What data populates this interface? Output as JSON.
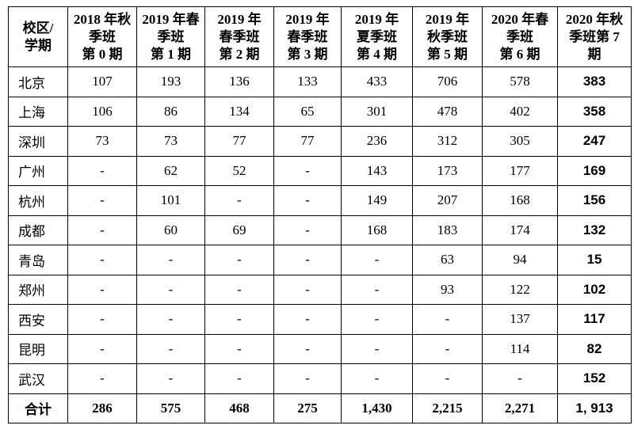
{
  "table": {
    "header": [
      [
        "校区/",
        "学期"
      ],
      [
        "2018 年秋",
        "季班",
        "第 0 期"
      ],
      [
        "2019 年春",
        "季班",
        "第 1 期"
      ],
      [
        "2019 年",
        "春季班",
        "第 2 期"
      ],
      [
        "2019 年",
        "春季班",
        "第 3 期"
      ],
      [
        "2019 年",
        "夏季班",
        "第 4 期"
      ],
      [
        "2019 年",
        "秋季班",
        "第 5 期"
      ],
      [
        "2020 年春",
        "季班",
        "第 6 期"
      ],
      [
        "2020 年秋",
        "季班第 7",
        "期"
      ]
    ],
    "rows": [
      [
        "北京",
        "107",
        "193",
        "136",
        "133",
        "433",
        "706",
        "578",
        "383"
      ],
      [
        "上海",
        "106",
        "86",
        "134",
        "65",
        "301",
        "478",
        "402",
        "358"
      ],
      [
        "深圳",
        "73",
        "73",
        "77",
        "77",
        "236",
        "312",
        "305",
        "247"
      ],
      [
        "广州",
        "-",
        "62",
        "52",
        "-",
        "143",
        "173",
        "177",
        "169"
      ],
      [
        "杭州",
        "-",
        "101",
        "-",
        "-",
        "149",
        "207",
        "168",
        "156"
      ],
      [
        "成都",
        "-",
        "60",
        "69",
        "-",
        "168",
        "183",
        "174",
        "132"
      ],
      [
        "青岛",
        "-",
        "-",
        "-",
        "-",
        "-",
        "63",
        "94",
        "15"
      ],
      [
        "郑州",
        "-",
        "-",
        "-",
        "-",
        "-",
        "93",
        "122",
        "102"
      ],
      [
        "西安",
        "-",
        "-",
        "-",
        "-",
        "-",
        "-",
        "137",
        "117"
      ],
      [
        "昆明",
        "-",
        "-",
        "-",
        "-",
        "-",
        "-",
        "114",
        "82"
      ],
      [
        "武汉",
        "-",
        "-",
        "-",
        "-",
        "-",
        "-",
        "-",
        "152"
      ],
      [
        "合计",
        "286",
        "575",
        "468",
        "275",
        "1,430",
        "2,215",
        "2,271",
        "1, 913"
      ]
    ]
  }
}
